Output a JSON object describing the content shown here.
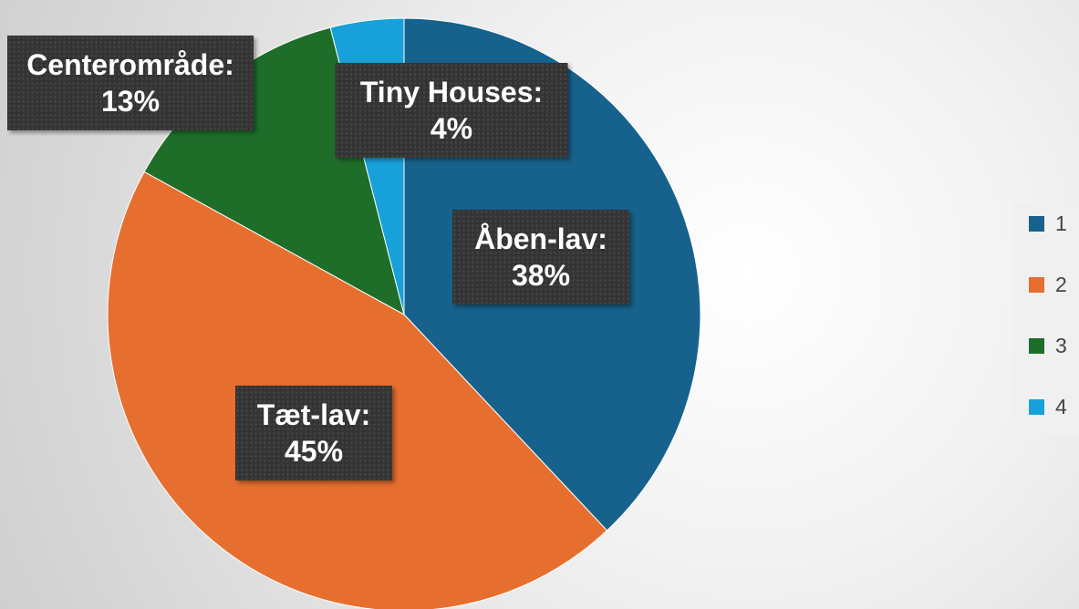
{
  "chart_data": {
    "type": "pie",
    "categories": [
      "1",
      "2",
      "3",
      "4"
    ],
    "labels": [
      "Åben-lav:",
      "Tæt-lav:",
      "Centerområde:",
      "Tiny Houses:"
    ],
    "values": [
      38,
      45,
      13,
      4
    ],
    "value_labels": [
      "38%",
      "45%",
      "13%",
      "4%"
    ],
    "colors": [
      "#17628c",
      "#e66f2f",
      "#1e6e2a",
      "#17a0d9"
    ],
    "legend": "right"
  }
}
